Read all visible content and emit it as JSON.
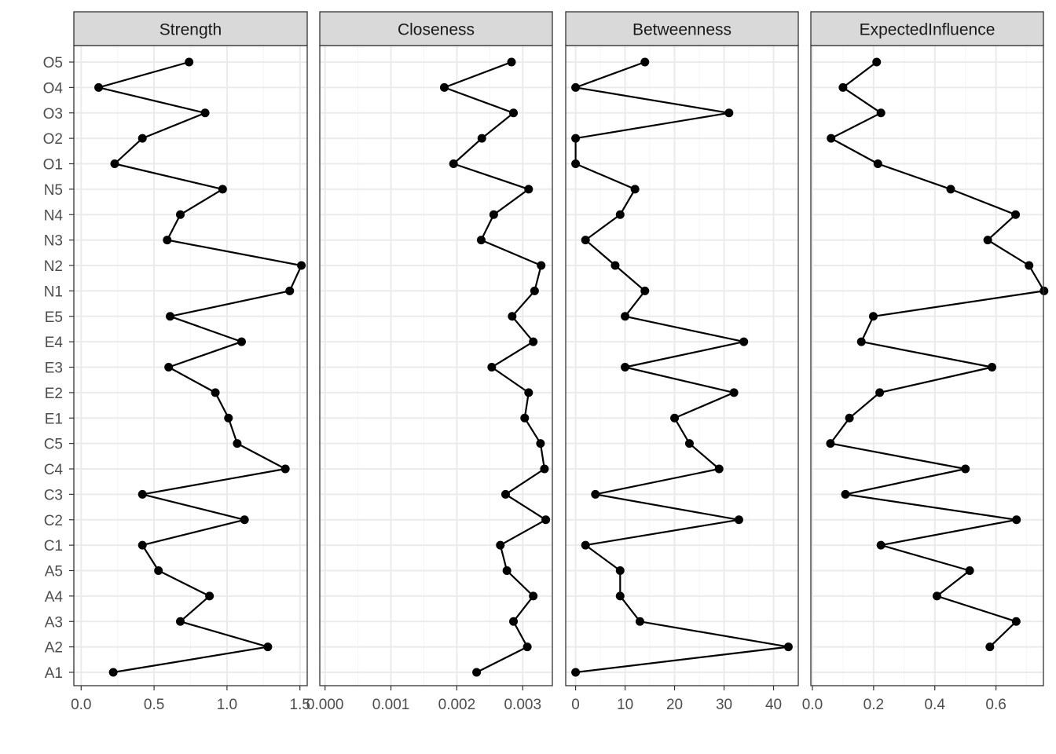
{
  "chart_data": {
    "type": "line",
    "orientation": "horizontal-dot-plot",
    "categories": [
      "A1",
      "A2",
      "A3",
      "A4",
      "A5",
      "C1",
      "C2",
      "C3",
      "C4",
      "C5",
      "E1",
      "E2",
      "E3",
      "E4",
      "E5",
      "N1",
      "N2",
      "N3",
      "N4",
      "N5",
      "O1",
      "O2",
      "O3",
      "O4",
      "O5"
    ],
    "grid": true,
    "theme_colors": {
      "strip_fill": "#d9d9d9",
      "panel_border": "#333333",
      "grid_major": "#ebebeb",
      "grid_minor": "#f5f5f5",
      "line": "#000000",
      "point": "#000000"
    },
    "panels": [
      {
        "title": "Strength",
        "xlim": [
          -0.05,
          1.55
        ],
        "xticks": [
          0.0,
          0.5,
          1.0,
          1.5
        ],
        "xtick_labels": [
          "0.0",
          "0.5",
          "1.0",
          "1.5"
        ],
        "values": [
          0.22,
          1.28,
          0.68,
          0.88,
          0.53,
          0.42,
          1.12,
          0.42,
          1.4,
          1.07,
          1.01,
          0.92,
          0.6,
          1.1,
          0.61,
          1.43,
          1.51,
          0.59,
          0.68,
          0.97,
          0.23,
          0.42,
          0.85,
          0.12,
          0.74
        ]
      },
      {
        "title": "Closeness",
        "xlim": [
          -8e-05,
          0.00345
        ],
        "xticks": [
          0.0,
          0.001,
          0.002,
          0.003
        ],
        "xtick_labels": [
          "0.000",
          "0.001",
          "0.002",
          "0.003"
        ],
        "values": [
          0.0023,
          0.00307,
          0.00286,
          0.00316,
          0.00276,
          0.00266,
          0.00335,
          0.00274,
          0.00333,
          0.00327,
          0.00303,
          0.00309,
          0.00253,
          0.00316,
          0.00284,
          0.00318,
          0.00328,
          0.00237,
          0.00256,
          0.00309,
          0.00195,
          0.00238,
          0.00286,
          0.00181,
          0.00283
        ]
      },
      {
        "title": "Betweenness",
        "xlim": [
          -2,
          45
        ],
        "xticks": [
          0,
          10,
          20,
          30,
          40
        ],
        "xtick_labels": [
          "0",
          "10",
          "20",
          "30",
          "40"
        ],
        "values": [
          0,
          43,
          13,
          9,
          9,
          2,
          33,
          4,
          29,
          23,
          20,
          32,
          10,
          34,
          10,
          14,
          8,
          2,
          9,
          12,
          0,
          0,
          31,
          0,
          14
        ]
      },
      {
        "title": "ExpectedInfluence",
        "xlim": [
          -0.005,
          0.755
        ],
        "xticks": [
          0.0,
          0.2,
          0.4,
          0.6
        ],
        "xtick_labels": [
          "0.0",
          "0.2",
          "0.4",
          "0.6"
        ],
        "values": [
          null,
          0.58,
          0.666,
          0.407,
          0.514,
          0.224,
          0.667,
          0.108,
          0.5,
          0.059,
          0.121,
          0.22,
          0.587,
          0.16,
          0.199,
          0.757,
          0.708,
          0.573,
          0.664,
          0.452,
          0.214,
          0.061,
          0.224,
          0.1,
          0.21
        ]
      }
    ]
  }
}
